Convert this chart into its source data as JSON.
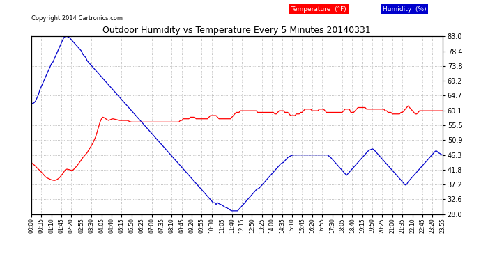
{
  "title": "Outdoor Humidity vs Temperature Every 5 Minutes 20140331",
  "copyright": "Copyright 2014 Cartronics.com",
  "bg_color": "#ffffff",
  "grid_color": "#b0b0b0",
  "temp_color": "#ff0000",
  "humidity_color": "#0000cc",
  "y_ticks": [
    28.0,
    32.6,
    37.2,
    41.8,
    46.3,
    50.9,
    55.5,
    60.1,
    64.7,
    69.2,
    73.8,
    78.4,
    83.0
  ],
  "x_tick_labels": [
    "00:00",
    "00:35",
    "01:10",
    "01:45",
    "02:20",
    "02:55",
    "03:30",
    "04:05",
    "04:40",
    "05:15",
    "05:50",
    "06:25",
    "07:00",
    "07:35",
    "08:10",
    "08:45",
    "09:20",
    "09:55",
    "10:30",
    "11:05",
    "11:40",
    "12:15",
    "12:50",
    "13:25",
    "14:00",
    "14:35",
    "15:10",
    "15:45",
    "16:20",
    "16:55",
    "17:30",
    "18:05",
    "18:40",
    "19:15",
    "19:50",
    "20:25",
    "21:00",
    "21:35",
    "22:10",
    "22:45",
    "23:20",
    "23:55"
  ],
  "temp_series": [
    44.0,
    43.5,
    43.2,
    42.8,
    42.3,
    41.9,
    41.5,
    41.0,
    40.5,
    40.0,
    39.5,
    39.2,
    39.0,
    38.8,
    38.6,
    38.5,
    38.4,
    38.5,
    38.7,
    39.0,
    39.4,
    40.0,
    40.5,
    41.2,
    41.8,
    41.9,
    41.8,
    41.7,
    41.5,
    41.6,
    42.0,
    42.5,
    43.0,
    43.6,
    44.2,
    44.8,
    45.5,
    46.0,
    46.5,
    47.0,
    47.8,
    48.5,
    49.2,
    50.0,
    51.0,
    52.0,
    53.5,
    55.0,
    56.5,
    57.5,
    58.0,
    57.8,
    57.5,
    57.2,
    57.0,
    57.2,
    57.4,
    57.5,
    57.4,
    57.3,
    57.2,
    57.0,
    57.0,
    57.0,
    57.0,
    57.0,
    57.0,
    57.0,
    56.8,
    56.6,
    56.5,
    56.5,
    56.5,
    56.5,
    56.5,
    56.5,
    56.5,
    56.5,
    56.5,
    56.5,
    56.5,
    56.5,
    56.5,
    56.5,
    56.5,
    56.5,
    56.5,
    56.5,
    56.5,
    56.5,
    56.5,
    56.5,
    56.5,
    56.5,
    56.5,
    56.5,
    56.5,
    56.5,
    56.5,
    56.5,
    56.5,
    56.5,
    56.5,
    56.5,
    57.0,
    57.0,
    57.5,
    57.5,
    57.5,
    57.5,
    57.5,
    58.0,
    58.0,
    58.0,
    58.0,
    57.5,
    57.5,
    57.5,
    57.5,
    57.5,
    57.5,
    57.5,
    57.5,
    57.5,
    58.0,
    58.5,
    58.5,
    58.5,
    58.5,
    58.5,
    58.0,
    57.5,
    57.5,
    57.5,
    57.5,
    57.5,
    57.5,
    57.5,
    57.5,
    57.5,
    58.0,
    58.5,
    59.0,
    59.5,
    59.5,
    59.5,
    60.0,
    60.0,
    60.0,
    60.0,
    60.0,
    60.0,
    60.0,
    60.0,
    60.0,
    60.0,
    60.0,
    60.0,
    59.5,
    59.5,
    59.5,
    59.5,
    59.5,
    59.5,
    59.5,
    59.5,
    59.5,
    59.5,
    59.5,
    59.5,
    59.0,
    59.0,
    59.5,
    60.0,
    60.0,
    60.0,
    60.0,
    59.5,
    59.5,
    59.5,
    59.0,
    58.5,
    58.5,
    58.5,
    58.5,
    59.0,
    59.0,
    59.0,
    59.5,
    59.5,
    60.0,
    60.5,
    60.5,
    60.5,
    60.5,
    60.5,
    60.0,
    60.0,
    60.0,
    60.0,
    60.0,
    60.5,
    60.5,
    60.5,
    60.5,
    60.0,
    59.5,
    59.5,
    59.5,
    59.5,
    59.5,
    59.5,
    59.5,
    59.5,
    59.5,
    59.5,
    59.5,
    59.5,
    60.0,
    60.5,
    60.5,
    60.5,
    60.5,
    59.5,
    59.5,
    59.5,
    60.0,
    60.5,
    61.0,
    61.0,
    61.0,
    61.0,
    61.0,
    61.0,
    60.5,
    60.5,
    60.5,
    60.5,
    60.5,
    60.5,
    60.5,
    60.5,
    60.5,
    60.5,
    60.5,
    60.5,
    60.5,
    60.0,
    60.0,
    59.5,
    59.5,
    59.5,
    59.0,
    59.0,
    59.0,
    59.0,
    59.0,
    59.0,
    59.5,
    59.5,
    60.0,
    60.5,
    61.0,
    61.5,
    61.0,
    60.5,
    60.0,
    59.5,
    59.0,
    59.0,
    59.5,
    60.0,
    60.0,
    60.0,
    60.0,
    60.0,
    60.0,
    60.0,
    60.0,
    60.0,
    60.0,
    60.0,
    60.0,
    60.0,
    60.0,
    60.0,
    60.0,
    60.0
  ],
  "humidity_series": [
    62.5,
    62.2,
    62.5,
    63.0,
    64.0,
    65.0,
    66.5,
    67.5,
    68.5,
    69.5,
    70.5,
    71.5,
    72.5,
    73.5,
    74.5,
    75.0,
    76.0,
    77.0,
    78.0,
    79.0,
    80.0,
    81.0,
    82.0,
    82.8,
    83.0,
    83.0,
    82.8,
    82.5,
    82.0,
    81.5,
    81.0,
    80.5,
    80.0,
    79.5,
    79.0,
    78.5,
    77.5,
    77.0,
    76.5,
    75.5,
    75.0,
    74.5,
    74.0,
    73.5,
    73.0,
    72.5,
    72.0,
    71.5,
    71.0,
    70.5,
    70.0,
    69.5,
    69.0,
    68.5,
    68.0,
    67.5,
    67.0,
    66.5,
    66.0,
    65.5,
    65.0,
    64.5,
    64.0,
    63.5,
    63.0,
    62.5,
    62.0,
    61.5,
    61.0,
    60.5,
    60.0,
    59.5,
    59.0,
    58.5,
    58.0,
    57.5,
    57.0,
    56.5,
    56.0,
    55.5,
    55.0,
    54.5,
    54.0,
    53.5,
    53.0,
    52.5,
    52.0,
    51.5,
    51.0,
    50.5,
    50.0,
    49.5,
    49.0,
    48.5,
    48.0,
    47.5,
    47.0,
    46.5,
    46.0,
    45.5,
    45.0,
    44.5,
    44.0,
    43.5,
    43.0,
    42.5,
    42.0,
    41.5,
    41.0,
    40.5,
    40.0,
    39.5,
    39.0,
    38.5,
    38.0,
    37.5,
    37.0,
    36.5,
    36.0,
    35.5,
    35.0,
    34.5,
    34.0,
    33.5,
    33.0,
    32.5,
    32.0,
    31.5,
    31.5,
    31.0,
    31.5,
    31.2,
    31.0,
    30.8,
    30.5,
    30.2,
    30.0,
    29.8,
    29.5,
    29.2,
    29.0,
    29.0,
    29.0,
    29.0,
    29.0,
    29.5,
    30.0,
    30.5,
    31.0,
    31.5,
    32.0,
    32.5,
    33.0,
    33.5,
    34.0,
    34.5,
    35.0,
    35.5,
    35.8,
    36.0,
    36.5,
    37.0,
    37.5,
    38.0,
    38.5,
    39.0,
    39.5,
    40.0,
    40.5,
    41.0,
    41.5,
    42.0,
    42.5,
    43.0,
    43.5,
    43.8,
    44.0,
    44.5,
    45.0,
    45.5,
    45.8,
    46.0,
    46.2,
    46.3,
    46.3,
    46.3,
    46.3,
    46.3,
    46.3,
    46.3,
    46.3,
    46.3,
    46.3,
    46.3,
    46.3,
    46.3,
    46.3,
    46.3,
    46.3,
    46.3,
    46.3,
    46.3,
    46.3,
    46.3,
    46.3,
    46.3,
    46.3,
    46.3,
    45.8,
    45.5,
    45.0,
    44.5,
    44.0,
    43.5,
    43.0,
    42.5,
    42.0,
    41.5,
    41.0,
    40.5,
    40.0,
    40.5,
    41.0,
    41.5,
    42.0,
    42.5,
    43.0,
    43.5,
    44.0,
    44.5,
    45.0,
    45.5,
    46.0,
    46.5,
    47.0,
    47.5,
    47.8,
    48.0,
    48.2,
    48.0,
    47.5,
    47.0,
    46.5,
    46.0,
    45.5,
    45.0,
    44.5,
    44.0,
    43.5,
    43.0,
    42.5,
    42.0,
    41.5,
    41.0,
    40.5,
    40.0,
    39.5,
    39.0,
    38.5,
    38.0,
    37.5,
    37.0,
    37.2,
    38.0,
    38.5,
    39.0,
    39.5,
    40.0,
    40.5,
    41.0,
    41.5,
    42.0,
    42.5,
    43.0,
    43.5,
    44.0,
    44.5,
    45.0,
    45.5,
    46.0,
    46.5,
    47.0,
    47.5,
    47.5,
    47.0,
    46.8,
    46.5,
    46.3
  ]
}
